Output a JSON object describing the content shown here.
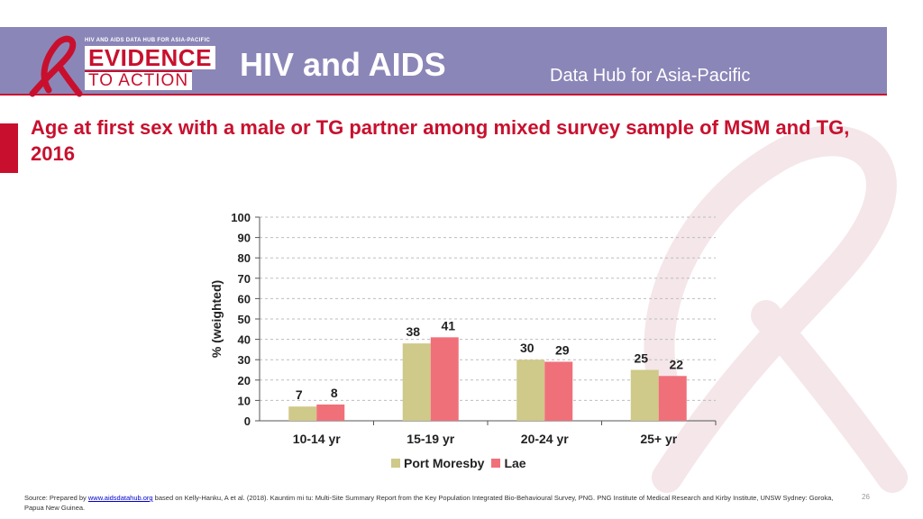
{
  "header": {
    "logo_tagline": "HIV AND AIDS DATA HUB FOR ASIA-PACIFIC",
    "logo_main": "EVIDENCE",
    "logo_sub": "TO ACTION",
    "title": "HIV and AIDS",
    "subtitle": "Data Hub for Asia-Pacific"
  },
  "slide": {
    "title": "Age at first sex with a male or TG partner among mixed survey sample of MSM and TG, 2016"
  },
  "chart_data": {
    "type": "bar",
    "categories": [
      "10-14 yr",
      "15-19 yr",
      "20-24 yr",
      "25+ yr"
    ],
    "series": [
      {
        "name": "Port Moresby",
        "values": [
          7,
          38,
          30,
          25
        ],
        "color": "#cfc98a"
      },
      {
        "name": "Lae",
        "values": [
          8,
          41,
          29,
          22
        ],
        "color": "#f0707a"
      }
    ],
    "ylabel": "% (weighted)",
    "ylim": [
      0,
      100
    ],
    "yticks": [
      0,
      10,
      20,
      30,
      40,
      50,
      60,
      70,
      80,
      90,
      100
    ],
    "grid": true,
    "legend_position": "bottom"
  },
  "footer": {
    "source_prefix": "Source: Prepared by ",
    "source_link": "www.aidsdatahub.org",
    "source_rest": " based on Kelly-Hanku, A et al. (2018). Kauntim mi tu: Multi-Site Summary Report from the Key Population Integrated Bio-Behavioural Survey, PNG. PNG Institute of Medical Research and Kirby Institute, UNSW Sydney: Goroka, Papua New Guinea.",
    "page_number": "26"
  },
  "colors": {
    "header_bg": "#8b86b8",
    "accent_red": "#c8102e"
  }
}
